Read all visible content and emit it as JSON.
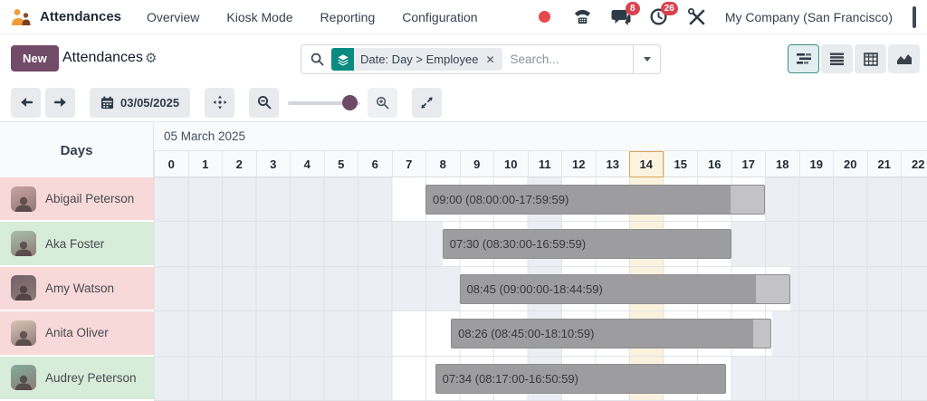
{
  "brand": {
    "app": "Attendances"
  },
  "nav": {
    "menus": [
      "Overview",
      "Kiosk Mode",
      "Reporting",
      "Configuration"
    ],
    "message_badge": "8",
    "activity_badge": "26",
    "company": "My Company (San Francisco)"
  },
  "control_panel": {
    "new_button": "New",
    "title": "Attendances",
    "search_facet": "Date: Day > Employee",
    "search_placeholder": "Search...",
    "views": [
      "gantt",
      "list",
      "pivot",
      "graph"
    ],
    "active_view": "gantt"
  },
  "toolbar": {
    "date": "03/05/2025"
  },
  "gantt": {
    "date_title": "05 March 2025",
    "days_header": "Days",
    "hours": [
      "0",
      "1",
      "2",
      "3",
      "4",
      "5",
      "6",
      "7",
      "8",
      "9",
      "10",
      "11",
      "12",
      "13",
      "14",
      "15",
      "16",
      "17",
      "18",
      "19",
      "20",
      "21",
      "22"
    ],
    "current_hour_index": 14,
    "rows": [
      {
        "name": "Abigail Peterson",
        "tint": "pink",
        "avatar_tone": "#c9a2a0",
        "schedule": [
          [
            7,
            11
          ],
          [
            12,
            18
          ]
        ],
        "bar": {
          "start": 8,
          "dark_end": 17,
          "end": 18,
          "label": "09:00 (08:00:00-17:59:59)"
        }
      },
      {
        "name": "Aka Foster",
        "tint": "green",
        "avatar_tone": "#a9c0ab",
        "schedule": [
          [
            8.5,
            11
          ],
          [
            12,
            17
          ]
        ],
        "bar": {
          "start": 8.5,
          "dark_end": 17,
          "end": 17,
          "label": "07:30 (08:30:00-16:59:59)"
        }
      },
      {
        "name": "Amy Watson",
        "tint": "pink",
        "avatar_tone": "#73616a",
        "schedule": [
          [
            9,
            11
          ],
          [
            12,
            18.75
          ]
        ],
        "bar": {
          "start": 9,
          "dark_end": 17.75,
          "end": 18.75,
          "label": "08:45 (09:00:00-18:44:59)"
        }
      },
      {
        "name": "Anita Oliver",
        "tint": "pink",
        "avatar_tone": "#d8c4b7",
        "schedule": [
          [
            7,
            11
          ],
          [
            12,
            18.2
          ]
        ],
        "bar": {
          "start": 8.75,
          "dark_end": 17.67,
          "end": 18.18,
          "label": "08:26 (08:45:00-18:10:59)"
        }
      },
      {
        "name": "Audrey Peterson",
        "tint": "green",
        "avatar_tone": "#7fae9a",
        "schedule": [
          [
            7,
            11
          ],
          [
            12,
            17
          ]
        ],
        "bar": {
          "start": 8.283,
          "dark_end": 16.85,
          "end": 16.85,
          "label": "07:34 (08:17:00-16:50:59)"
        }
      }
    ]
  },
  "colors": {
    "primary": "#714B67",
    "teal": "#0b8a80",
    "pink_row": "#f7d9d9",
    "green_row": "#d7ecd9",
    "bar": "#9d9da0",
    "bar_light": "#c3c3c5",
    "current_column": "#fbf2dd",
    "badge": "#d9434f"
  }
}
